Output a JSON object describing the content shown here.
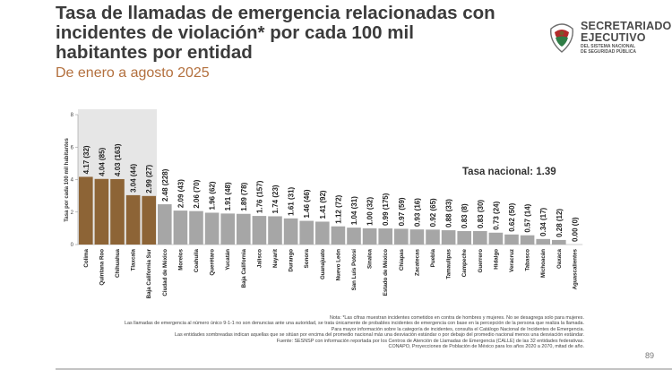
{
  "slide": {
    "title_lines": [
      "Tasa de llamadas de emergencia relacionadas con",
      "incidentes de violación* por cada 100 mil",
      "habitantes por entidad"
    ],
    "subtitle": "De enero a agosto 2025",
    "page_number": "89"
  },
  "logo": {
    "line1": "SECRETARIADO",
    "line2": "EJECUTIVO",
    "line3": "DEL SISTEMA NACIONAL",
    "line4": "DE SEGURIDAD PÚBLICA"
  },
  "notes": [
    "Nota: *Las cifras muestran incidentes cometidos en contra de hombres y mujeres. No se desagrega solo para mujeres.",
    "Las llamadas de emergencia al número único 9-1-1 no son denuncias ante una autoridad, se trata únicamente de probables incidentes de emergencia con base en la percepción de la persona que realiza la llamada.",
    "Para mayor información sobre la categoría de incidentes, consulta el Catálogo Nacional de Incidentes de Emergencia.",
    "Las entidades sombreadas indican aquellas que se sitúan por encima del promedio nacional más una desviación estándar o por debajo del promedio nacional menos una desviación estándar.",
    "Fuente: SESNSP con información reportada por los Centros de Atención de Llamadas de Emergencia (CALLE) de las 32 entidades federativas.",
    "CONAPO, Proyecciones de Población de México para los años 2020 a 2070, mitad de año."
  ],
  "colors": {
    "highlight": "#8d6436",
    "normal": "#a6a6a6",
    "shade": "#e6e6e6",
    "title": "#3b3b3b",
    "subtitle": "#b3703e"
  },
  "chart_data": {
    "type": "bar",
    "ylabel": "Tasa por cada 100 mil habitantes",
    "ylim": [
      0,
      8
    ],
    "yticks": [
      "0",
      "2",
      "4",
      "6",
      "8"
    ],
    "reference_label": "Tasa nacional: 1.39",
    "reference_value": 1.39,
    "reference_line_drawn": false,
    "categories": [
      "Colima",
      "Quintana Roo",
      "Chihuahua",
      "Tlaxcala",
      "Baja California Sur",
      "Ciudad de México",
      "Morelos",
      "Coahuila",
      "Querétaro",
      "Yucatán",
      "Baja California",
      "Jalisco",
      "Nayarit",
      "Durango",
      "Sonora",
      "Guanajuato",
      "Nuevo León",
      "San Luis Potosí",
      "Sinaloa",
      "Estado de México",
      "Chiapas",
      "Zacatecas",
      "Puebla",
      "Tamaulipas",
      "Campeche",
      "Guerrero",
      "Hidalgo",
      "Veracruz",
      "Tabasco",
      "Michoacán",
      "Oaxaca",
      "Aguascalientes"
    ],
    "values": [
      4.17,
      4.04,
      4.03,
      3.04,
      2.99,
      2.48,
      2.09,
      2.06,
      1.96,
      1.91,
      1.89,
      1.76,
      1.74,
      1.61,
      1.46,
      1.41,
      1.12,
      1.04,
      1.0,
      0.99,
      0.97,
      0.93,
      0.92,
      0.88,
      0.83,
      0.83,
      0.73,
      0.62,
      0.57,
      0.34,
      0.28,
      0.0
    ],
    "counts": [
      32,
      85,
      163,
      44,
      27,
      228,
      43,
      70,
      62,
      48,
      78,
      157,
      23,
      31,
      46,
      92,
      72,
      31,
      32,
      175,
      59,
      16,
      65,
      33,
      8,
      30,
      24,
      50,
      14,
      17,
      12,
      0
    ],
    "value_labels": [
      "4.17 (32)",
      "4.04 (85)",
      "4.03 (163)",
      "3.04 (44)",
      "2.99 (27)",
      "2.48 (228)",
      "2.09 (43)",
      "2.06 (70)",
      "1.96 (62)",
      "1.91 (48)",
      "1.89 (78)",
      "1.76 (157)",
      "1.74 (23)",
      "1.61 (31)",
      "1.46 (46)",
      "1.41 (92)",
      "1.12 (72)",
      "1.04 (31)",
      "1.00 (32)",
      "0.99 (175)",
      "0.97 (59)",
      "0.93 (16)",
      "0.92 (65)",
      "0.88 (33)",
      "0.83 (8)",
      "0.83 (30)",
      "0.73 (24)",
      "0.62 (50)",
      "0.57 (14)",
      "0.34 (17)",
      "0.28 (12)",
      "0.00 (0)"
    ],
    "highlighted_count": 5,
    "grid": false
  }
}
